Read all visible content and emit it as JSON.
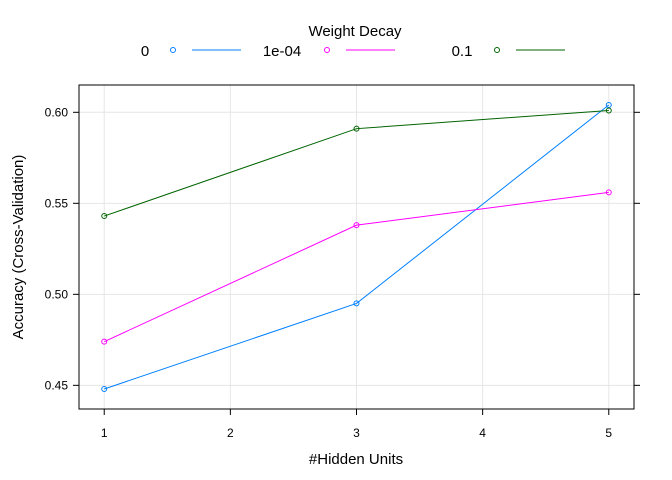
{
  "chart_data": {
    "type": "line",
    "legend": {
      "title": "Weight Decay",
      "position": "top"
    },
    "xlabel": "#Hidden Units",
    "ylabel": "Accuracy (Cross-Validation)",
    "xlim": [
      0.8,
      5.2
    ],
    "ylim": [
      0.437,
      0.615
    ],
    "xticks": [
      1,
      2,
      3,
      4,
      5
    ],
    "xtick_labels": [
      "1",
      "2",
      "3",
      "4",
      "5"
    ],
    "yticks": [
      0.45,
      0.5,
      0.55,
      0.6
    ],
    "ytick_labels": [
      "0.45",
      "0.50",
      "0.55",
      "0.60"
    ],
    "grid": true,
    "x": [
      1,
      3,
      5
    ],
    "series": [
      {
        "name": "0",
        "color": "#0080ff",
        "values": [
          0.448,
          0.495,
          0.604
        ]
      },
      {
        "name": "1e-04",
        "color": "#ff00ff",
        "values": [
          0.474,
          0.538,
          0.556
        ]
      },
      {
        "name": "0.1",
        "color": "#006400",
        "values": [
          0.543,
          0.591,
          0.601
        ]
      }
    ]
  }
}
